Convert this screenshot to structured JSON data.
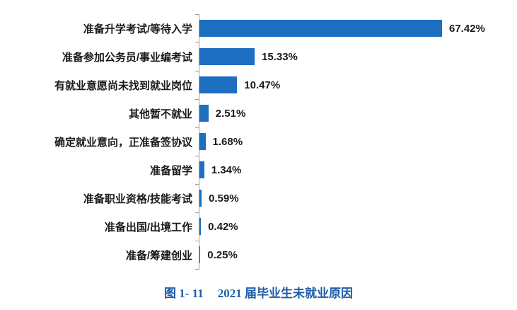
{
  "chart_data": {
    "type": "bar",
    "orientation": "horizontal",
    "title": "2021 届毕业生未就业原因",
    "xlabel": "",
    "ylabel": "",
    "xlim": [
      0,
      70
    ],
    "grid": false,
    "legend": "none",
    "categories": [
      "准备升学考试/等待入学",
      "准备参加公务员/事业编考试",
      "有就业意愿尚未找到就业岗位",
      "其他暂不就业",
      "确定就业意向，正准备签协议",
      "准备留学",
      "准备职业资格/技能考试",
      "准备出国/出境工作",
      "准备/筹建创业"
    ],
    "values": [
      67.42,
      15.33,
      10.47,
      2.51,
      1.68,
      1.34,
      0.59,
      0.42,
      0.25
    ],
    "value_labels": [
      "67.42%",
      "15.33%",
      "10.47%",
      "2.51%",
      "1.68%",
      "1.34%",
      "0.59%",
      "0.42%",
      "0.25%"
    ],
    "bar_color": "#1d6fc2",
    "axis_color": "#9e9e9e",
    "label_color": "#1a1a1a"
  },
  "caption": {
    "figure_label": "图 1- 11",
    "title": "2021 届毕业生未就业原因",
    "color": "#1e5ca8"
  }
}
